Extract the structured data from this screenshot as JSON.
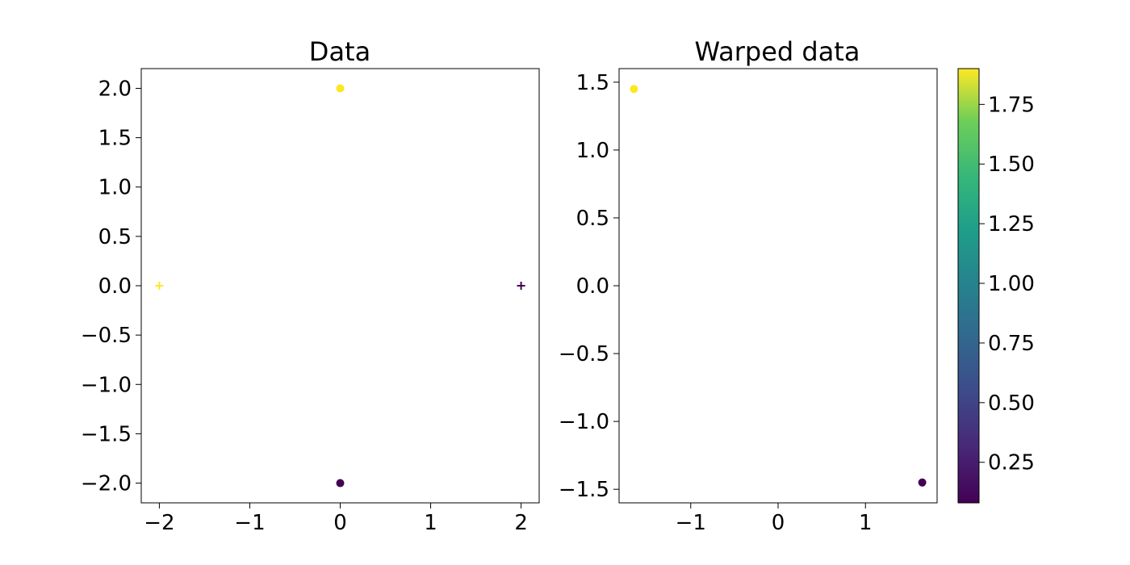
{
  "chart_data": [
    {
      "type": "scatter",
      "title": "Data",
      "xlabel": "",
      "ylabel": "",
      "xlim": [
        -2.2,
        2.2
      ],
      "ylim": [
        -2.2,
        2.2
      ],
      "xticks": [
        -2,
        -1,
        0,
        1,
        2
      ],
      "xtick_labels": [
        "−2",
        "−1",
        "0",
        "1",
        "2"
      ],
      "yticks": [
        2.0,
        1.5,
        1.0,
        0.5,
        0.0,
        -0.5,
        -1.0,
        -1.5,
        -2.0
      ],
      "ytick_labels": [
        "2.0",
        "1.5",
        "1.0",
        "0.5",
        "0.0",
        "−0.5",
        "−1.0",
        "−1.5",
        "−2.0"
      ],
      "grid": false,
      "colormap": "viridis",
      "points": [
        {
          "x": 0,
          "y": 2,
          "c": 1.9,
          "marker": "circle"
        },
        {
          "x": 0,
          "y": -2,
          "c": 0.08,
          "marker": "circle"
        },
        {
          "x": -2,
          "y": 0,
          "c": 1.9,
          "marker": "plus"
        },
        {
          "x": 2,
          "y": 0,
          "c": 0.08,
          "marker": "plus"
        }
      ]
    },
    {
      "type": "scatter",
      "title": "Warped data",
      "xlabel": "",
      "ylabel": "",
      "xlim": [
        -1.82,
        1.82
      ],
      "ylim": [
        -1.6,
        1.6
      ],
      "xticks": [
        -1,
        0,
        1
      ],
      "xtick_labels": [
        "−1",
        "0",
        "1"
      ],
      "yticks": [
        1.5,
        1.0,
        0.5,
        0.0,
        -0.5,
        -1.0,
        -1.5
      ],
      "ytick_labels": [
        "1.5",
        "1.0",
        "0.5",
        "0.0",
        "−0.5",
        "−1.0",
        "−1.5"
      ],
      "grid": false,
      "colormap": "viridis",
      "points": [
        {
          "x": -1.65,
          "y": 1.45,
          "c": 1.9,
          "marker": "circle"
        },
        {
          "x": 1.65,
          "y": -1.45,
          "c": 0.08,
          "marker": "circle"
        }
      ],
      "colorbar": {
        "range": [
          0.08,
          1.9
        ],
        "ticks": [
          1.75,
          1.5,
          1.25,
          1.0,
          0.75,
          0.5,
          0.25
        ],
        "tick_labels": [
          "1.75",
          "1.50",
          "1.25",
          "1.00",
          "0.75",
          "0.50",
          "0.25"
        ]
      }
    }
  ],
  "colors": {
    "yellow": "#fde725",
    "purple": "#440154"
  }
}
